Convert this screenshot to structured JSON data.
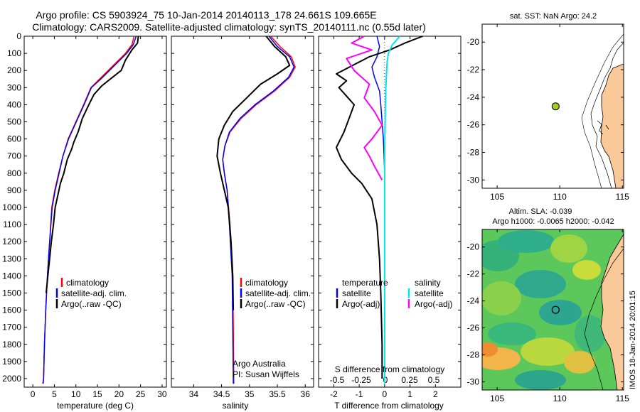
{
  "header": {
    "title_line1": "Argo profile: CS 5903924_75 10-Jan-2014 20140113_178 24.661S 109.665E",
    "title_line2": "Climatology: CARS2009. Satellite-adjusted climatology: synTS_20140111.nc (0.55d later)"
  },
  "colors": {
    "climatology": "#ff0000",
    "satellite": "#0000ff",
    "argo": "#000000",
    "satellite_salinity": "#00e5ee",
    "argo_salinity_adj": "#ff00ff",
    "land": "#f9c99a"
  },
  "chart_data": [
    {
      "id": "temperature",
      "type": "line",
      "xlabel": "temperature (deg C)",
      "ylabel": "",
      "xlim": [
        -2,
        31
      ],
      "ylim": [
        2050,
        0
      ],
      "x_ticks": [
        0,
        5,
        10,
        15,
        20,
        25,
        30
      ],
      "x_tick_labels": [
        "0",
        "5",
        "10",
        "15",
        "20",
        "25",
        "30"
      ],
      "y_ticks": [
        0,
        100,
        200,
        300,
        400,
        500,
        600,
        700,
        800,
        900,
        1000,
        1100,
        1200,
        1300,
        1400,
        1500,
        1600,
        1700,
        1800,
        1900,
        2000
      ],
      "y_tick_labels": [
        "0",
        "100",
        "200",
        "300",
        "400",
        "500",
        "600",
        "700",
        "800",
        "900",
        "1000",
        "1100",
        "1200",
        "1300",
        "1400",
        "1500",
        "1600",
        "1700",
        "1800",
        "1900",
        "2000"
      ],
      "legend": [
        "climatology",
        "satellite-adj. clim.",
        "Argo(..raw -QC)"
      ],
      "series": [
        {
          "name": "climatology",
          "color": "#ff0000",
          "width": 1.5,
          "x": [
            23.5,
            23.0,
            21.5,
            19.5,
            17.5,
            15.5,
            13.5,
            11.8,
            10.0,
            8.2,
            7.0,
            6.0,
            5.1,
            4.4,
            3.9,
            3.4,
            3.0,
            2.7,
            2.5,
            2.3
          ],
          "y": [
            0,
            50,
            100,
            150,
            200,
            250,
            300,
            400,
            500,
            600,
            700,
            800,
            900,
            1000,
            1200,
            1400,
            1600,
            1800,
            2000,
            2030
          ]
        },
        {
          "name": "satellite-adj. clim.",
          "color": "#0000ff",
          "width": 1.5,
          "x": [
            24.0,
            23.3,
            21.8,
            19.8,
            17.8,
            15.8,
            13.6,
            11.9,
            10.1,
            8.3,
            7.0,
            6.1,
            5.2,
            4.5,
            3.9,
            3.4,
            3.0,
            2.7,
            2.5,
            2.4
          ],
          "y": [
            0,
            50,
            100,
            150,
            200,
            250,
            300,
            400,
            500,
            600,
            700,
            800,
            900,
            1000,
            1200,
            1400,
            1600,
            1800,
            2000,
            2030
          ]
        },
        {
          "name": "Argo(..raw -QC)",
          "color": "#000000",
          "width": 2,
          "x": [
            24.5,
            24.3,
            23.0,
            21.5,
            20.5,
            18.0,
            16.0,
            14.2,
            13.0,
            11.5,
            10.5,
            9.5,
            9.0,
            8.0,
            7.2,
            6.4,
            5.8,
            5.2,
            4.8,
            4.3,
            3.9,
            3.5,
            3.1
          ],
          "y": [
            0,
            40,
            80,
            140,
            200,
            250,
            290,
            340,
            400,
            480,
            560,
            620,
            660,
            720,
            800,
            860,
            930,
            1000,
            1100,
            1200,
            1300,
            1400,
            1500
          ]
        }
      ]
    },
    {
      "id": "salinity",
      "type": "line",
      "xlabel": "salinity",
      "ylabel": "",
      "xlim": [
        33.6,
        36.15
      ],
      "ylim": [
        2050,
        0
      ],
      "x_ticks": [
        34,
        34.5,
        35,
        35.5,
        36
      ],
      "x_tick_labels": [
        "34",
        "34.5",
        "35",
        "35.5",
        "36"
      ],
      "legend": [
        "climatology",
        "satellite-adj. clim.",
        "Argo(..raw -QC)"
      ],
      "annotations": [
        "Argo Australia",
        "PI: Susan Wijffels"
      ],
      "series": [
        {
          "name": "climatology",
          "color": "#ff0000",
          "width": 1.5,
          "x": [
            35.38,
            35.55,
            35.75,
            35.82,
            35.72,
            35.45,
            35.12,
            34.85,
            34.65,
            34.56,
            34.52,
            34.55,
            34.6,
            34.65,
            34.7,
            34.71,
            34.72
          ],
          "y": [
            0,
            60,
            120,
            180,
            240,
            320,
            400,
            480,
            560,
            640,
            720,
            800,
            900,
            1100,
            1400,
            1700,
            2030
          ]
        },
        {
          "name": "satellite-adj. clim.",
          "color": "#0000ff",
          "width": 1.5,
          "x": [
            35.35,
            35.5,
            35.72,
            35.8,
            35.7,
            35.43,
            35.1,
            34.83,
            34.64,
            34.56,
            34.52,
            34.55,
            34.6,
            34.64,
            34.69,
            34.7,
            34.71
          ],
          "y": [
            0,
            60,
            120,
            180,
            240,
            320,
            400,
            480,
            560,
            640,
            720,
            800,
            900,
            1100,
            1400,
            1700,
            2030
          ]
        },
        {
          "name": "Argo(..raw -QC)",
          "color": "#000000",
          "width": 2,
          "x": [
            35.3,
            35.45,
            35.65,
            35.72,
            35.5,
            35.2,
            34.95,
            34.7,
            34.55,
            34.45,
            34.42,
            34.48,
            34.55,
            34.62,
            34.67,
            34.7,
            34.71
          ],
          "y": [
            0,
            60,
            120,
            170,
            220,
            280,
            360,
            440,
            520,
            600,
            700,
            800,
            900,
            1000,
            1200,
            1400,
            1600
          ]
        }
      ]
    },
    {
      "id": "difference",
      "type": "line",
      "xlabel": "T difference from climatology",
      "top_axis_label": "S difference from climatology",
      "xlim": [
        -2.6,
        3.0
      ],
      "ylim": [
        2050,
        0
      ],
      "x_ticks": [
        -2,
        -1,
        0,
        1,
        2
      ],
      "x_tick_labels": [
        "-2",
        "-1",
        "0",
        "1",
        "2"
      ],
      "s_ticks": [
        -0.5,
        -0.25,
        0,
        0.25,
        0.5
      ],
      "s_tick_labels": [
        "-0.5",
        "-0.25",
        "0",
        "0.25",
        "0.5"
      ],
      "legend_temperature_title": "temperature",
      "legend_salinity_title": "salinity",
      "legend": [
        "satellite",
        "Argo(-adj)",
        "satellite",
        "Argo(-adj)"
      ],
      "series": [
        {
          "name": "satellite",
          "color": "#0000ff",
          "width": 1.5,
          "x": [
            -0.3,
            -0.2,
            -0.3,
            -0.5,
            -0.4,
            -0.2,
            -0.15,
            -0.1,
            -0.05,
            -0.02,
            0
          ],
          "y": [
            0,
            60,
            120,
            180,
            240,
            320,
            400,
            500,
            600,
            700,
            800
          ]
        },
        {
          "name": "Argo(-adj)",
          "color": "#000000",
          "width": 2,
          "x": [
            1.5,
            0.8,
            0.2,
            -0.6,
            -1.9,
            -1.5,
            -1.8,
            -1.5,
            -1.2,
            -1.4,
            -1.6,
            -1.9,
            -1.7,
            -1.3,
            -0.9,
            -0.5,
            -0.3,
            -0.2,
            -0.15,
            -0.1,
            -0.1
          ],
          "y": [
            0,
            40,
            80,
            120,
            220,
            260,
            300,
            350,
            400,
            480,
            560,
            650,
            720,
            800,
            860,
            950,
            1100,
            1300,
            1500,
            1800,
            2000
          ]
        },
        {
          "name": "satellite",
          "color": "#00e5ee",
          "width": 2,
          "x": [
            0.6,
            0.3,
            0.15,
            0.1,
            0.08,
            0.05,
            0.03,
            0.02,
            0.01,
            0.0,
            0.0,
            0.0
          ],
          "y": [
            0,
            50,
            100,
            150,
            200,
            300,
            400,
            500,
            600,
            800,
            1200,
            2030
          ]
        },
        {
          "name": "Argo(-adj)",
          "color": "#ff00ff",
          "width": 2,
          "x": [
            -0.8,
            -1.3,
            -0.5,
            -1.5,
            -1.2,
            -0.6,
            -0.8,
            -0.4,
            -0.1,
            -0.5,
            -0.8,
            -0.6,
            -0.4,
            -0.1
          ],
          "y": [
            0,
            40,
            80,
            130,
            200,
            280,
            360,
            440,
            520,
            600,
            650,
            700,
            760,
            840
          ]
        }
      ]
    },
    {
      "id": "sst-map",
      "type": "map",
      "title": "sat. SST: NaN Argo: 24.2",
      "xlim": [
        103.8,
        115.1
      ],
      "ylim": [
        -30.6,
        -18.7
      ],
      "x_ticks": [
        105,
        110,
        115
      ],
      "x_tick_labels": [
        "105",
        "110",
        "115"
      ],
      "y_ticks": [
        -20,
        -22,
        -24,
        -26,
        -28,
        -30
      ],
      "y_tick_labels": [
        "-20",
        "-22",
        "-24",
        "-26",
        "-28",
        "-30"
      ],
      "marker": {
        "lon": 109.665,
        "lat": -24.661,
        "color": "#a0d020"
      }
    },
    {
      "id": "sla-map",
      "type": "map",
      "title": "Altim. SLA: -0.039",
      "subtitle": "Argo h1000: -0.0065 h2000: -0.042",
      "xlim": [
        103.8,
        115.1
      ],
      "ylim": [
        -30.6,
        -18.7
      ],
      "x_ticks": [
        105,
        110,
        115
      ],
      "x_tick_labels": [
        "105",
        "110",
        "115"
      ],
      "y_ticks": [
        -20,
        -22,
        -24,
        -26,
        -28,
        -30
      ],
      "y_tick_labels": [
        "-20",
        "-22",
        "-24",
        "-26",
        "-28",
        "-30"
      ],
      "marker": {
        "lon": 109.665,
        "lat": -24.661
      }
    }
  ],
  "watermark": "IMOS 18-Jan-2014 20:01:15"
}
